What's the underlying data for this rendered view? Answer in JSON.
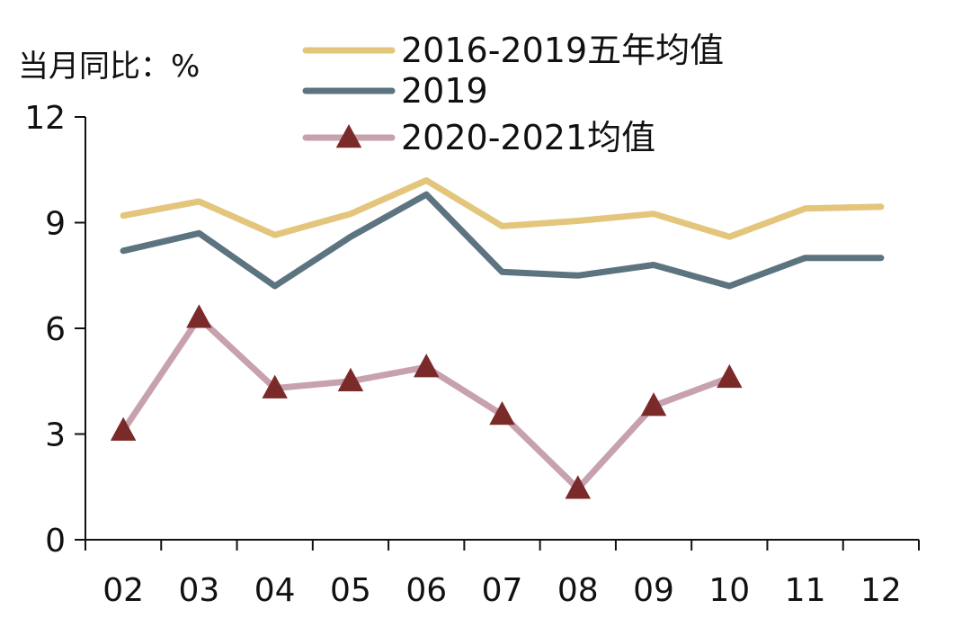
{
  "chart_data": {
    "type": "line",
    "ylabel": "当月同比：%",
    "ylim": [
      0,
      12
    ],
    "yticks": [
      "0",
      "3",
      "6",
      "9",
      "12"
    ],
    "categories": [
      "02",
      "03",
      "04",
      "05",
      "06",
      "07",
      "08",
      "09",
      "10",
      "11",
      "12"
    ],
    "legend_position": "top",
    "grid": false,
    "series": [
      {
        "name": "2016-2019五年均值",
        "color": "#E3C57C",
        "marker": "none",
        "values": [
          9.2,
          9.6,
          8.65,
          9.25,
          10.2,
          8.9,
          9.05,
          9.25,
          8.6,
          9.4,
          9.45
        ]
      },
      {
        "name": "2019",
        "color": "#5C7380",
        "marker": "none",
        "values": [
          8.2,
          8.7,
          7.2,
          8.6,
          9.8,
          7.6,
          7.5,
          7.8,
          7.2,
          8.0,
          8.0
        ]
      },
      {
        "name": "2020-2021均值",
        "color": "#C8A1AE",
        "marker": "triangle",
        "marker_color": "#7B2A2A",
        "values": [
          3.1,
          6.3,
          4.3,
          4.5,
          4.9,
          3.55,
          1.45,
          3.8,
          4.6,
          null,
          null
        ]
      }
    ]
  }
}
